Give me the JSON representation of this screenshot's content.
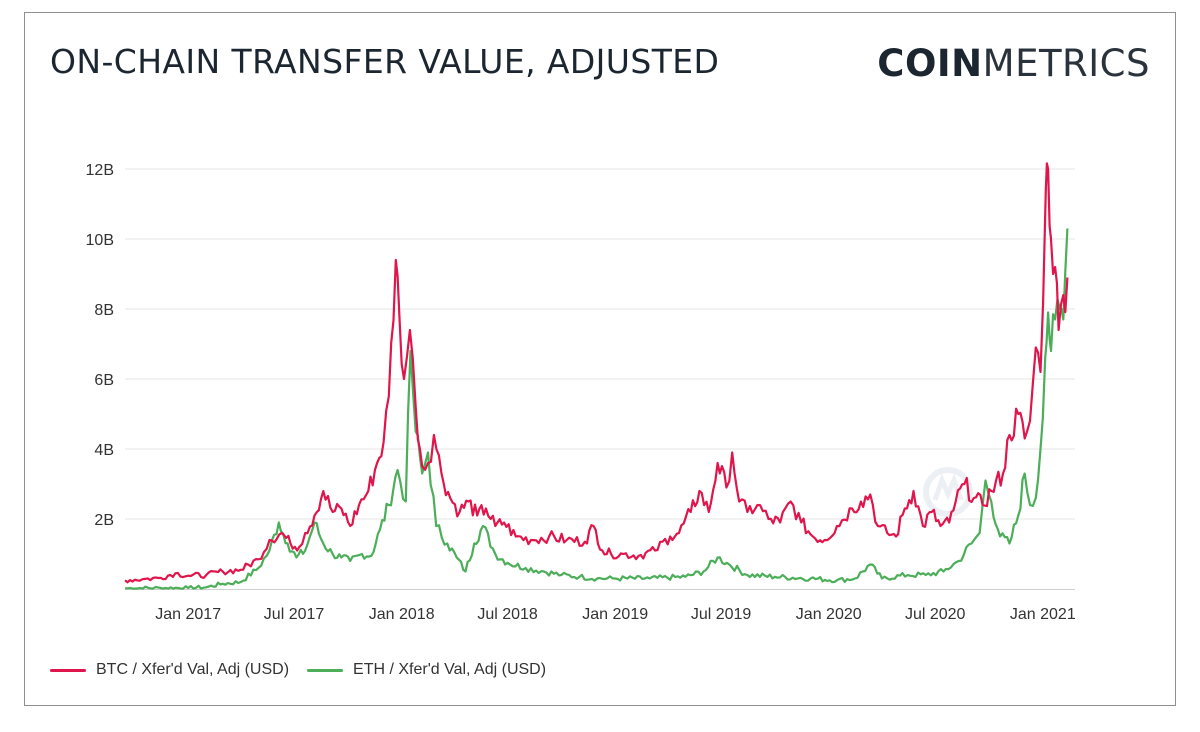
{
  "header": {
    "title": "ON-CHAIN TRANSFER VALUE, ADJUSTED",
    "logo_bold": "COIN",
    "logo_light": "METRICS"
  },
  "colors": {
    "btc": "#e0154b",
    "eth": "#4cae59",
    "grid": "#e6e6e6",
    "text": "#333333"
  },
  "legend": {
    "btc_label": "BTC / Xfer'd Val, Adj (USD)",
    "eth_label": "ETH / Xfer'd Val, Adj (USD)"
  },
  "chart_data": {
    "type": "line",
    "title": "ON-CHAIN TRANSFER VALUE, ADJUSTED",
    "xlabel": "",
    "ylabel": "",
    "xlim": [
      "2016-09-15",
      "2021-02-25"
    ],
    "ylim": [
      0,
      12
    ],
    "y_unit": "B (USD)",
    "y_ticks": [
      2,
      4,
      6,
      8,
      10,
      12
    ],
    "y_tick_labels": [
      "2B",
      "4B",
      "6B",
      "8B",
      "10B",
      "12B"
    ],
    "x_ticks": [
      "2017-01-01",
      "2017-07-01",
      "2018-01-01",
      "2018-07-01",
      "2019-01-01",
      "2019-07-01",
      "2020-01-01",
      "2020-07-01",
      "2021-01-01"
    ],
    "x_tick_labels": [
      "Jan 2017",
      "Jul 2017",
      "Jan 2018",
      "Jul 2018",
      "Jan 2019",
      "Jul 2019",
      "Jan 2020",
      "Jul 2020",
      "Jan 2021"
    ],
    "grid": "horizontal",
    "legend_position": "bottom-left",
    "series": [
      {
        "name": "BTC / Xfer'd Val, Adj (USD)",
        "points": [
          [
            "2016-09-15",
            0.25
          ],
          [
            "2016-10-15",
            0.28
          ],
          [
            "2016-11-15",
            0.32
          ],
          [
            "2016-12-10",
            0.45
          ],
          [
            "2017-01-01",
            0.38
          ],
          [
            "2017-02-01",
            0.4
          ],
          [
            "2017-03-01",
            0.5
          ],
          [
            "2017-04-01",
            0.55
          ],
          [
            "2017-05-01",
            0.85
          ],
          [
            "2017-05-20",
            1.4
          ],
          [
            "2017-06-10",
            1.6
          ],
          [
            "2017-06-25",
            1.3
          ],
          [
            "2017-07-10",
            1.2
          ],
          [
            "2017-07-20",
            1.6
          ],
          [
            "2017-08-05",
            2.1
          ],
          [
            "2017-08-20",
            2.8
          ],
          [
            "2017-09-05",
            2.2
          ],
          [
            "2017-09-20",
            2.3
          ],
          [
            "2017-10-05",
            1.8
          ],
          [
            "2017-10-20",
            2.4
          ],
          [
            "2017-11-05",
            2.8
          ],
          [
            "2017-11-20",
            3.6
          ],
          [
            "2017-12-01",
            4.2
          ],
          [
            "2017-12-10",
            5.5
          ],
          [
            "2017-12-22",
            9.4
          ],
          [
            "2017-12-28",
            7.8
          ],
          [
            "2018-01-05",
            6.0
          ],
          [
            "2018-01-15",
            7.4
          ],
          [
            "2018-01-25",
            5.2
          ],
          [
            "2018-02-05",
            3.5
          ],
          [
            "2018-02-15",
            3.6
          ],
          [
            "2018-02-25",
            4.4
          ],
          [
            "2018-03-10",
            3.3
          ],
          [
            "2018-03-25",
            2.6
          ],
          [
            "2018-04-10",
            2.2
          ],
          [
            "2018-04-25",
            2.5
          ],
          [
            "2018-05-10",
            2.1
          ],
          [
            "2018-05-25",
            2.3
          ],
          [
            "2018-06-10",
            1.8
          ],
          [
            "2018-06-25",
            1.9
          ],
          [
            "2018-07-15",
            1.5
          ],
          [
            "2018-08-10",
            1.4
          ],
          [
            "2018-09-10",
            1.5
          ],
          [
            "2018-10-10",
            1.4
          ],
          [
            "2018-11-10",
            1.35
          ],
          [
            "2018-11-25",
            1.8
          ],
          [
            "2018-12-10",
            1.1
          ],
          [
            "2018-12-25",
            1.0
          ],
          [
            "2019-01-15",
            1.0
          ],
          [
            "2019-02-10",
            0.95
          ],
          [
            "2019-03-10",
            1.1
          ],
          [
            "2019-04-05",
            1.5
          ],
          [
            "2019-04-20",
            1.6
          ],
          [
            "2019-05-10",
            2.2
          ],
          [
            "2019-05-25",
            2.8
          ],
          [
            "2019-06-10",
            2.2
          ],
          [
            "2019-06-25",
            3.6
          ],
          [
            "2019-07-10",
            2.9
          ],
          [
            "2019-07-20",
            3.9
          ],
          [
            "2019-08-01",
            2.5
          ],
          [
            "2019-08-15",
            2.2
          ],
          [
            "2019-09-01",
            2.4
          ],
          [
            "2019-09-20",
            2.0
          ],
          [
            "2019-10-10",
            1.9
          ],
          [
            "2019-10-28",
            2.5
          ],
          [
            "2019-11-15",
            1.9
          ],
          [
            "2019-12-05",
            1.5
          ],
          [
            "2019-12-25",
            1.4
          ],
          [
            "2020-01-15",
            1.8
          ],
          [
            "2020-02-10",
            2.3
          ],
          [
            "2020-02-25",
            2.5
          ],
          [
            "2020-03-12",
            2.7
          ],
          [
            "2020-03-25",
            1.8
          ],
          [
            "2020-04-10",
            1.6
          ],
          [
            "2020-04-25",
            1.5
          ],
          [
            "2020-05-10",
            2.3
          ],
          [
            "2020-05-25",
            2.8
          ],
          [
            "2020-06-10",
            1.8
          ],
          [
            "2020-06-25",
            2.2
          ],
          [
            "2020-07-10",
            1.8
          ],
          [
            "2020-07-25",
            1.9
          ],
          [
            "2020-08-05",
            2.5
          ],
          [
            "2020-08-20",
            3.0
          ],
          [
            "2020-09-05",
            2.6
          ],
          [
            "2020-09-20",
            2.4
          ],
          [
            "2020-10-05",
            2.8
          ],
          [
            "2020-10-25",
            3.3
          ],
          [
            "2020-11-05",
            4.4
          ],
          [
            "2020-11-20",
            5.0
          ],
          [
            "2020-12-01",
            4.3
          ],
          [
            "2020-12-10",
            4.8
          ],
          [
            "2020-12-20",
            6.9
          ],
          [
            "2020-12-28",
            6.2
          ],
          [
            "2021-01-06",
            11.4
          ],
          [
            "2021-01-10",
            12.0
          ],
          [
            "2021-01-15",
            10.0
          ],
          [
            "2021-01-22",
            9.2
          ],
          [
            "2021-01-28",
            7.4
          ],
          [
            "2021-02-05",
            8.4
          ],
          [
            "2021-02-12",
            8.9
          ]
        ]
      },
      {
        "name": "ETH / Xfer'd Val, Adj (USD)",
        "points": [
          [
            "2016-09-15",
            0.02
          ],
          [
            "2016-11-15",
            0.03
          ],
          [
            "2017-01-01",
            0.03
          ],
          [
            "2017-02-01",
            0.05
          ],
          [
            "2017-03-01",
            0.15
          ],
          [
            "2017-04-01",
            0.2
          ],
          [
            "2017-05-01",
            0.6
          ],
          [
            "2017-05-20",
            1.1
          ],
          [
            "2017-06-05",
            1.9
          ],
          [
            "2017-06-20",
            1.3
          ],
          [
            "2017-07-05",
            0.9
          ],
          [
            "2017-07-20",
            1.1
          ],
          [
            "2017-08-05",
            1.9
          ],
          [
            "2017-08-20",
            1.3
          ],
          [
            "2017-09-05",
            1.0
          ],
          [
            "2017-09-20",
            0.9
          ],
          [
            "2017-10-05",
            0.8
          ],
          [
            "2017-10-25",
            1.0
          ],
          [
            "2017-11-10",
            0.95
          ],
          [
            "2017-11-25",
            1.7
          ],
          [
            "2017-12-10",
            2.4
          ],
          [
            "2017-12-25",
            3.4
          ],
          [
            "2018-01-08",
            2.5
          ],
          [
            "2018-01-16",
            6.8
          ],
          [
            "2018-01-25",
            4.5
          ],
          [
            "2018-02-05",
            3.3
          ],
          [
            "2018-02-15",
            3.9
          ],
          [
            "2018-03-01",
            1.8
          ],
          [
            "2018-03-20",
            1.3
          ],
          [
            "2018-04-05",
            0.9
          ],
          [
            "2018-04-20",
            0.5
          ],
          [
            "2018-05-05",
            1.3
          ],
          [
            "2018-05-20",
            1.8
          ],
          [
            "2018-06-10",
            1.0
          ],
          [
            "2018-07-01",
            0.75
          ],
          [
            "2018-08-01",
            0.6
          ],
          [
            "2018-09-01",
            0.5
          ],
          [
            "2018-10-01",
            0.4
          ],
          [
            "2018-11-01",
            0.35
          ],
          [
            "2018-12-01",
            0.3
          ],
          [
            "2019-01-01",
            0.3
          ],
          [
            "2019-03-01",
            0.3
          ],
          [
            "2019-05-01",
            0.35
          ],
          [
            "2019-06-01",
            0.5
          ],
          [
            "2019-06-25",
            0.9
          ],
          [
            "2019-07-15",
            0.7
          ],
          [
            "2019-08-15",
            0.4
          ],
          [
            "2019-10-01",
            0.35
          ],
          [
            "2019-12-01",
            0.3
          ],
          [
            "2020-01-15",
            0.25
          ],
          [
            "2020-02-15",
            0.3
          ],
          [
            "2020-03-12",
            0.7
          ],
          [
            "2020-04-01",
            0.3
          ],
          [
            "2020-05-15",
            0.4
          ],
          [
            "2020-06-15",
            0.4
          ],
          [
            "2020-07-15",
            0.5
          ],
          [
            "2020-08-10",
            0.8
          ],
          [
            "2020-09-01",
            1.3
          ],
          [
            "2020-09-15",
            1.6
          ],
          [
            "2020-09-25",
            3.1
          ],
          [
            "2020-10-05",
            2.5
          ],
          [
            "2020-10-20",
            1.5
          ],
          [
            "2020-11-05",
            1.3
          ],
          [
            "2020-11-20",
            2.1
          ],
          [
            "2020-12-01",
            3.3
          ],
          [
            "2020-12-10",
            2.4
          ],
          [
            "2020-12-20",
            2.6
          ],
          [
            "2020-12-28",
            4.0
          ],
          [
            "2021-01-05",
            6.6
          ],
          [
            "2021-01-10",
            7.9
          ],
          [
            "2021-01-15",
            6.8
          ],
          [
            "2021-01-22",
            7.7
          ],
          [
            "2021-01-30",
            8.0
          ],
          [
            "2021-02-05",
            7.7
          ],
          [
            "2021-02-12",
            10.3
          ]
        ]
      }
    ]
  }
}
